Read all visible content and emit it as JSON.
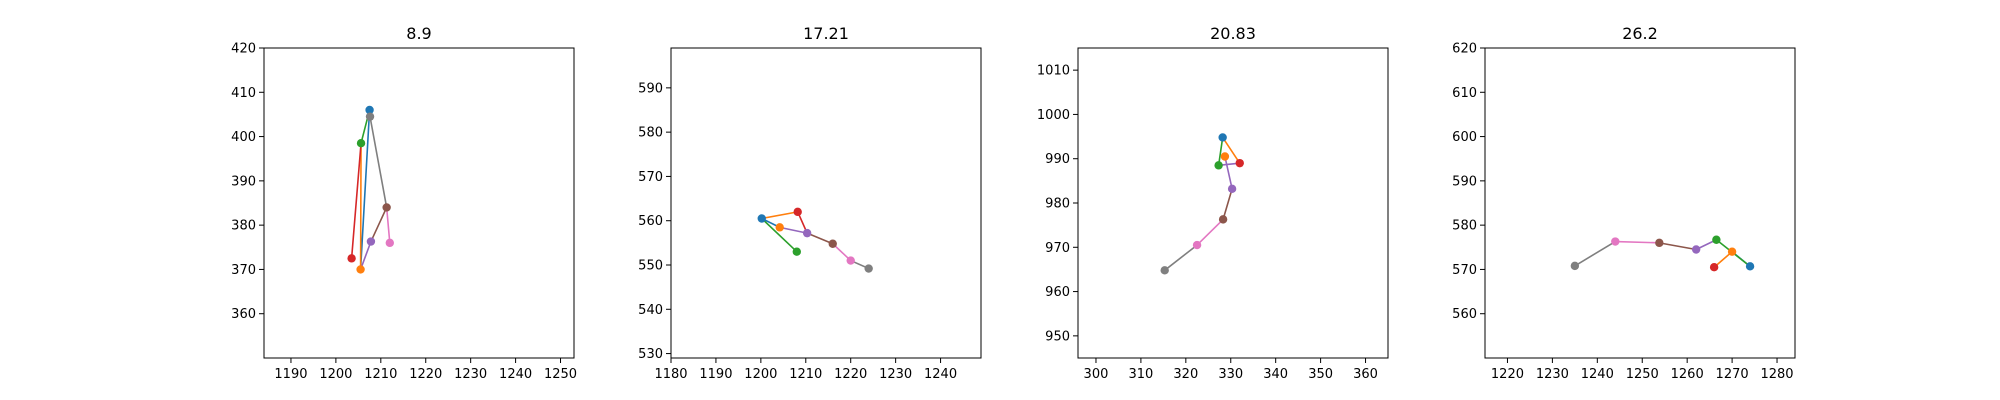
{
  "chart_data": [
    {
      "type": "line",
      "title": "8.9",
      "xlim": [
        1184,
        1253
      ],
      "ylim": [
        350,
        420
      ],
      "xticks": [
        1190,
        1200,
        1210,
        1220,
        1230,
        1240,
        1250
      ],
      "yticks": [
        360,
        370,
        380,
        390,
        400,
        410,
        420
      ],
      "points": [
        {
          "x": 1207.5,
          "y": 406.0,
          "color": "#1f77b4"
        },
        {
          "x": 1205.5,
          "y": 370.0,
          "color": "#ff7f0e"
        },
        {
          "x": 1205.6,
          "y": 398.5,
          "color": "#2ca02c"
        },
        {
          "x": 1203.5,
          "y": 372.5,
          "color": "#d62728"
        },
        {
          "x": 1207.8,
          "y": 376.3,
          "color": "#9467bd"
        },
        {
          "x": 1211.3,
          "y": 384.0,
          "color": "#8c564b"
        },
        {
          "x": 1212.0,
          "y": 376.0,
          "color": "#e377c2"
        },
        {
          "x": 1207.6,
          "y": 404.5,
          "color": "#7f7f7f"
        }
      ],
      "segments": [
        {
          "from": 0,
          "to": 1,
          "color": "#1f77b4"
        },
        {
          "from": 1,
          "to": 2,
          "color": "#ff7f0e"
        },
        {
          "from": 2,
          "to": 0,
          "color": "#2ca02c"
        },
        {
          "from": 2,
          "to": 3,
          "color": "#d62728"
        },
        {
          "from": 1,
          "to": 4,
          "color": "#9467bd"
        },
        {
          "from": 4,
          "to": 5,
          "color": "#8c564b"
        },
        {
          "from": 5,
          "to": 6,
          "color": "#e377c2"
        },
        {
          "from": 5,
          "to": 7,
          "color": "#7f7f7f"
        }
      ]
    },
    {
      "type": "line",
      "title": "17.21",
      "xlim": [
        1180,
        1249
      ],
      "ylim": [
        529,
        599
      ],
      "xticks": [
        1180,
        1190,
        1200,
        1210,
        1220,
        1230,
        1240
      ],
      "yticks": [
        530,
        540,
        550,
        560,
        570,
        580,
        590
      ],
      "points": [
        {
          "x": 1200.2,
          "y": 560.5,
          "color": "#1f77b4"
        },
        {
          "x": 1204.2,
          "y": 558.5,
          "color": "#ff7f0e"
        },
        {
          "x": 1208.0,
          "y": 553.0,
          "color": "#2ca02c"
        },
        {
          "x": 1208.2,
          "y": 562.0,
          "color": "#d62728"
        },
        {
          "x": 1210.3,
          "y": 557.2,
          "color": "#9467bd"
        },
        {
          "x": 1216.0,
          "y": 554.8,
          "color": "#8c564b"
        },
        {
          "x": 1220.0,
          "y": 551.0,
          "color": "#e377c2"
        },
        {
          "x": 1224.0,
          "y": 549.2,
          "color": "#7f7f7f"
        }
      ],
      "segments": [
        {
          "from": 0,
          "to": 1,
          "color": "#1f77b4"
        },
        {
          "from": 0,
          "to": 3,
          "color": "#ff7f0e"
        },
        {
          "from": 0,
          "to": 2,
          "color": "#2ca02c"
        },
        {
          "from": 3,
          "to": 4,
          "color": "#d62728"
        },
        {
          "from": 1,
          "to": 4,
          "color": "#9467bd"
        },
        {
          "from": 4,
          "to": 5,
          "color": "#8c564b"
        },
        {
          "from": 5,
          "to": 6,
          "color": "#e377c2"
        },
        {
          "from": 6,
          "to": 7,
          "color": "#7f7f7f"
        }
      ]
    },
    {
      "type": "line",
      "title": "20.83",
      "xlim": [
        296,
        365
      ],
      "ylim": [
        945,
        1015
      ],
      "xticks": [
        300,
        310,
        320,
        330,
        340,
        350,
        360
      ],
      "yticks": [
        950,
        960,
        970,
        980,
        990,
        1000,
        1010
      ],
      "points": [
        {
          "x": 328.2,
          "y": 994.8,
          "color": "#1f77b4"
        },
        {
          "x": 328.7,
          "y": 990.5,
          "color": "#ff7f0e"
        },
        {
          "x": 327.3,
          "y": 988.5,
          "color": "#2ca02c"
        },
        {
          "x": 332.0,
          "y": 989.0,
          "color": "#d62728"
        },
        {
          "x": 330.3,
          "y": 983.2,
          "color": "#9467bd"
        },
        {
          "x": 328.3,
          "y": 976.3,
          "color": "#8c564b"
        },
        {
          "x": 322.5,
          "y": 970.5,
          "color": "#e377c2"
        },
        {
          "x": 315.3,
          "y": 964.8,
          "color": "#7f7f7f"
        }
      ],
      "segments": [
        {
          "from": 0,
          "to": 2,
          "color": "#2ca02c"
        },
        {
          "from": 0,
          "to": 3,
          "color": "#ff7f0e"
        },
        {
          "from": 2,
          "to": 3,
          "color": "#9467bd"
        },
        {
          "from": 1,
          "to": 4,
          "color": "#9467bd"
        },
        {
          "from": 4,
          "to": 5,
          "color": "#8c564b"
        },
        {
          "from": 5,
          "to": 6,
          "color": "#e377c2"
        },
        {
          "from": 6,
          "to": 7,
          "color": "#7f7f7f"
        }
      ]
    },
    {
      "type": "line",
      "title": "26.2",
      "xlim": [
        1215,
        1284
      ],
      "ylim": [
        550,
        620
      ],
      "xticks": [
        1220,
        1230,
        1240,
        1250,
        1260,
        1270,
        1280
      ],
      "yticks": [
        560,
        570,
        580,
        590,
        600,
        610,
        620
      ],
      "points": [
        {
          "x": 1274.0,
          "y": 570.7,
          "color": "#1f77b4"
        },
        {
          "x": 1270.0,
          "y": 574.0,
          "color": "#ff7f0e"
        },
        {
          "x": 1266.5,
          "y": 576.7,
          "color": "#2ca02c"
        },
        {
          "x": 1266.0,
          "y": 570.5,
          "color": "#d62728"
        },
        {
          "x": 1262.0,
          "y": 574.5,
          "color": "#9467bd"
        },
        {
          "x": 1253.8,
          "y": 576.0,
          "color": "#8c564b"
        },
        {
          "x": 1244.0,
          "y": 576.3,
          "color": "#e377c2"
        },
        {
          "x": 1235.0,
          "y": 570.8,
          "color": "#7f7f7f"
        }
      ],
      "segments": [
        {
          "from": 0,
          "to": 1,
          "color": "#1f77b4"
        },
        {
          "from": 0,
          "to": 2,
          "color": "#2ca02c"
        },
        {
          "from": 1,
          "to": 3,
          "color": "#ff7f0e"
        },
        {
          "from": 2,
          "to": 4,
          "color": "#9467bd"
        },
        {
          "from": 4,
          "to": 5,
          "color": "#8c564b"
        },
        {
          "from": 5,
          "to": 6,
          "color": "#e377c2"
        },
        {
          "from": 6,
          "to": 7,
          "color": "#7f7f7f"
        }
      ]
    }
  ]
}
